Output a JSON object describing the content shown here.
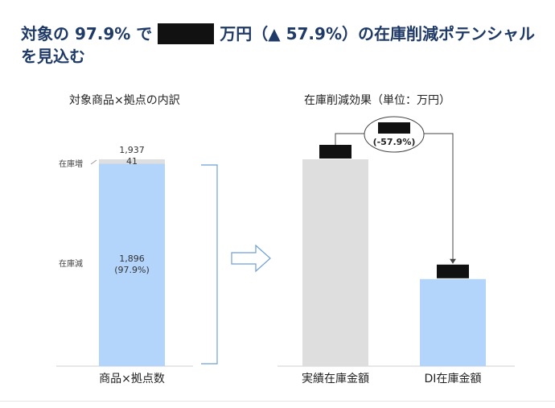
{
  "headline": {
    "part1": "対象の 97.9% で",
    "part2": "万円（▲ 57.9%）の在庫削減ポテンシャルを見込む"
  },
  "chart_data": [
    {
      "type": "bar",
      "title": "対象商品×拠点の内訳",
      "categories": [
        "商品×拠点数"
      ],
      "total": 1937,
      "total_label": "1,937",
      "series": [
        {
          "name": "在庫減",
          "values": [
            1896
          ],
          "label": "1,896",
          "sublabel": "(97.9%)",
          "color": "#b3d4fb"
        },
        {
          "name": "在庫増",
          "values": [
            41
          ],
          "label": "41",
          "color": "#dedede"
        }
      ],
      "ylim": [
        0,
        1937
      ]
    },
    {
      "type": "bar",
      "title": "在庫削減効果（単位：万円）",
      "categories": [
        "実績在庫金額",
        "DI在庫金額"
      ],
      "values": [
        1.0,
        0.421
      ],
      "colors": [
        "#dedede",
        "#b3d4fb"
      ],
      "change_label": "(-57.9%)",
      "ylim": [
        0,
        1.2
      ]
    }
  ],
  "colors": {
    "title": "#1f3a66",
    "bracket": "#6f9fd6",
    "arrow": "#6f9fd6",
    "redaction": "#111111"
  }
}
